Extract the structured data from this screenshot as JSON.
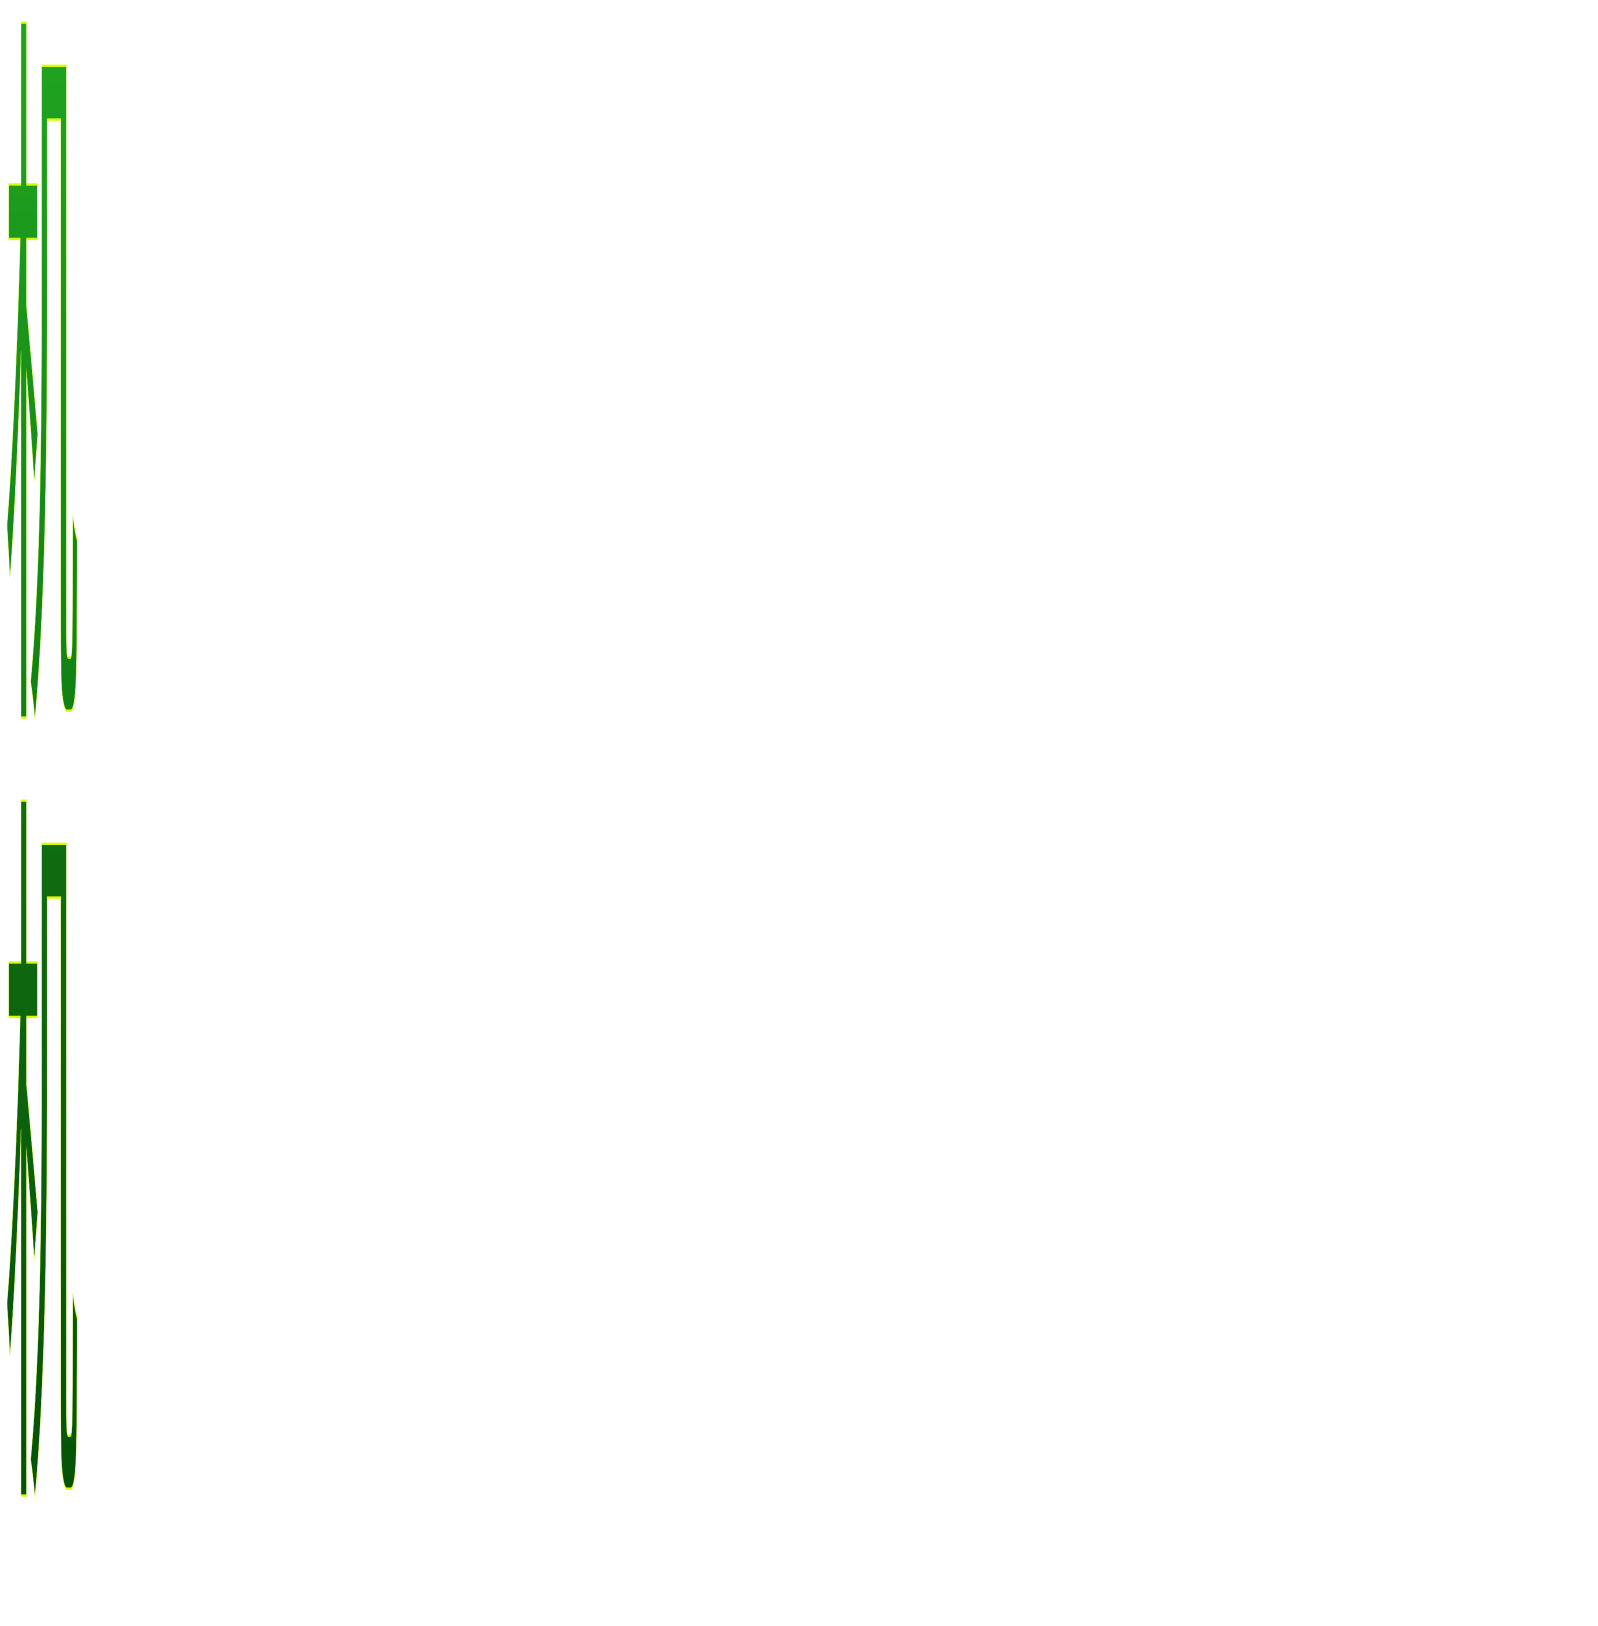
{
  "lines": [
    "机",
    "机"
  ]
}
